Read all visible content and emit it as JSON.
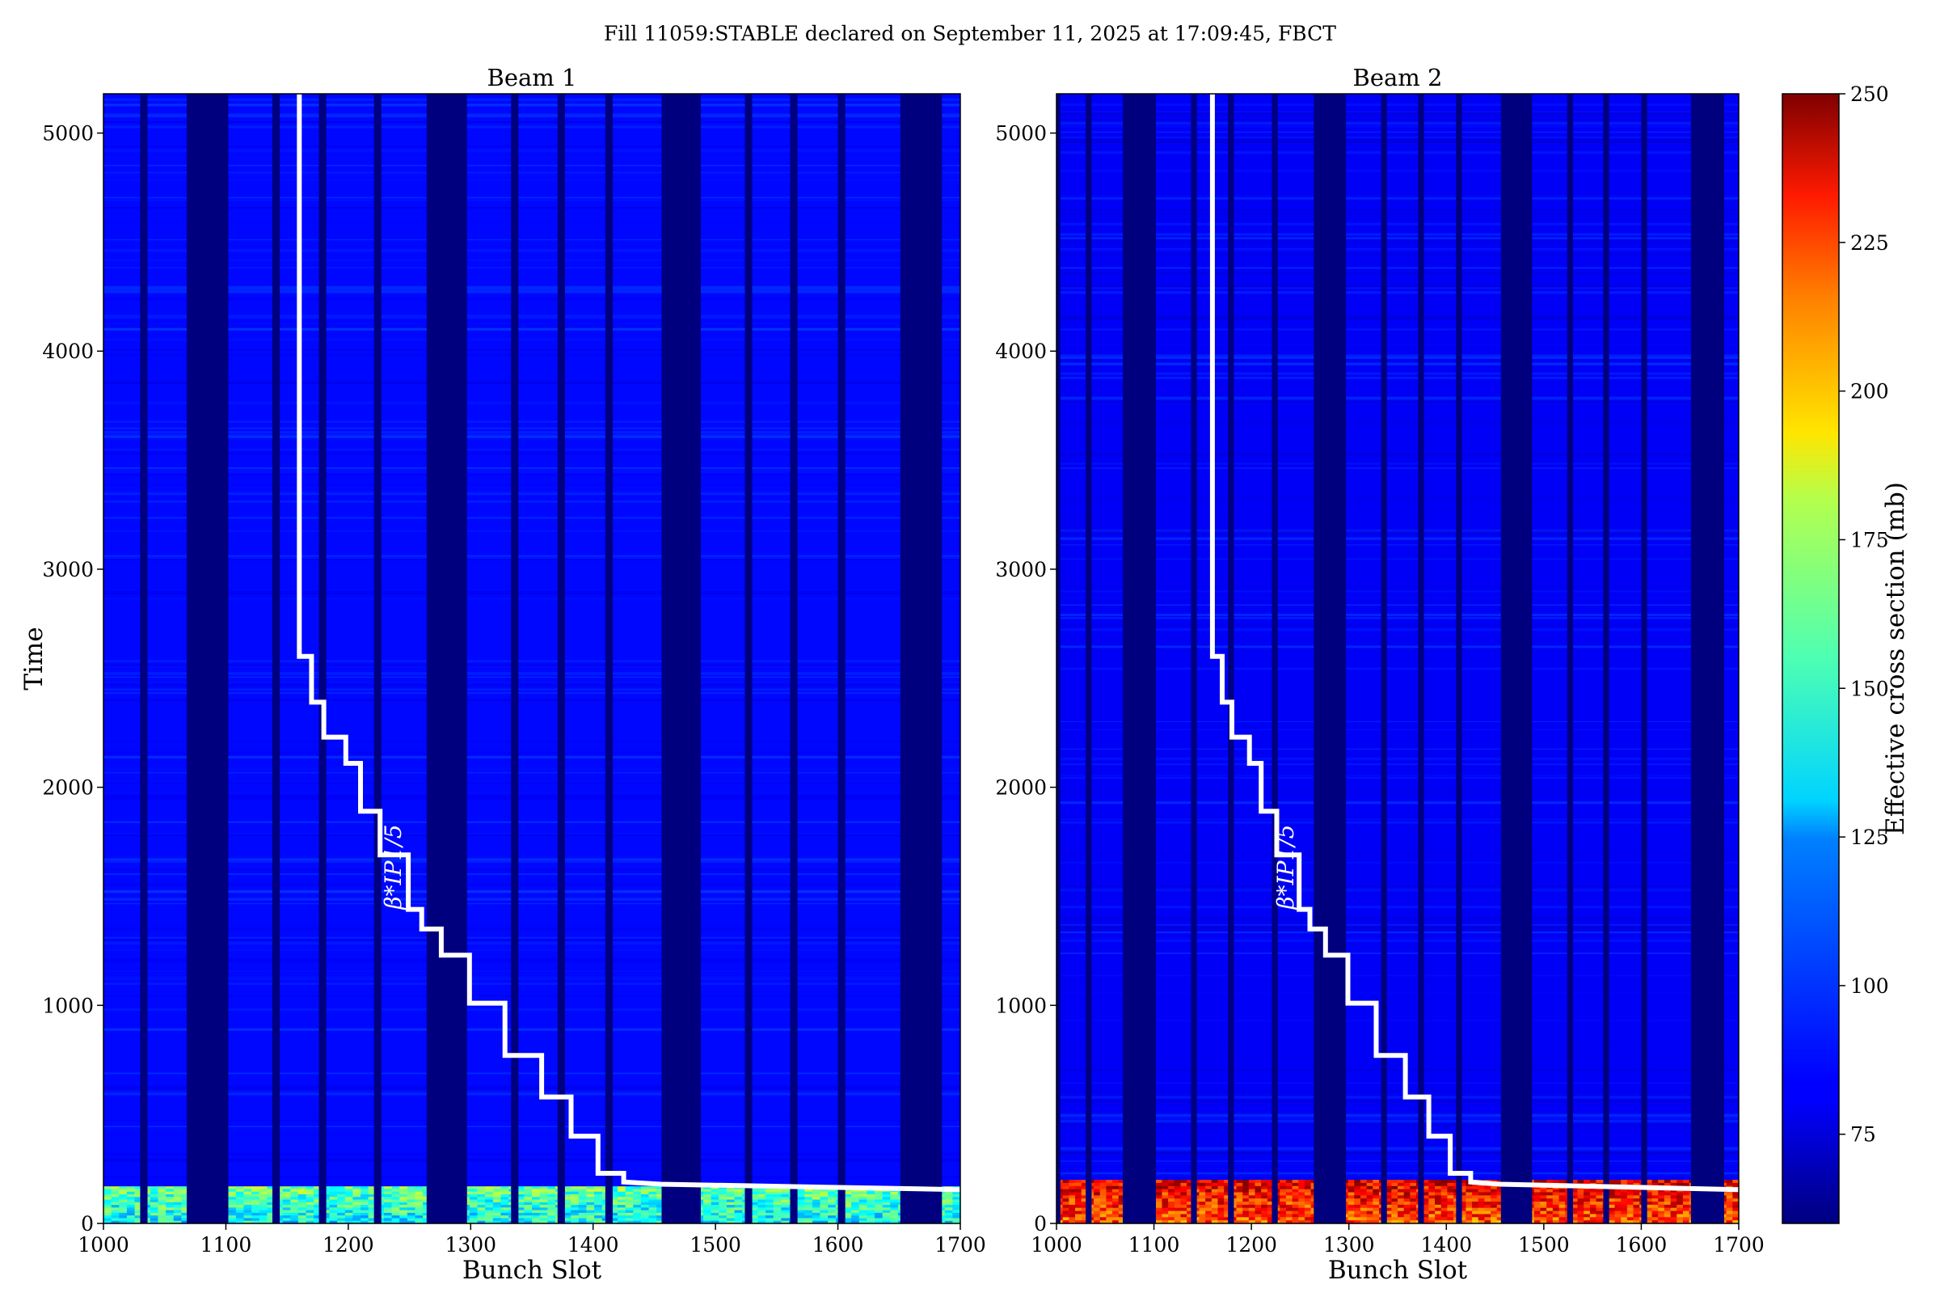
{
  "suptitle": "Fill 11059:STABLE declared on September 11, 2025 at 17:09:45, FBCT",
  "colorbar": {
    "label": "Effective cross section (mb)",
    "range": [
      60,
      250
    ],
    "ticks": [
      75,
      100,
      125,
      150,
      175,
      200,
      225,
      250
    ],
    "colormap": "jet"
  },
  "annotation_text": "β*IP1/5",
  "chart_data": [
    {
      "type": "heatmap",
      "title": "Beam 1",
      "xlabel": "Bunch Slot",
      "ylabel": "Time",
      "xlim": [
        1000,
        1700
      ],
      "ylim": [
        0,
        5180
      ],
      "xticks": [
        1000,
        1100,
        1200,
        1300,
        1400,
        1500,
        1600,
        1700
      ],
      "yticks": [
        0,
        1000,
        2000,
        3000,
        4000,
        5000
      ],
      "empty_slot_ranges": [
        [
          1030,
          1036
        ],
        [
          1068,
          1102
        ],
        [
          1138,
          1144
        ],
        [
          1176,
          1182
        ],
        [
          1221,
          1227
        ],
        [
          1264,
          1297
        ],
        [
          1333,
          1339
        ],
        [
          1371,
          1377
        ],
        [
          1410,
          1416
        ],
        [
          1456,
          1488
        ],
        [
          1524,
          1530
        ],
        [
          1561,
          1567
        ],
        [
          1600,
          1606
        ],
        [
          1651,
          1685
        ]
      ],
      "typical_value": 85,
      "high_value_band": {
        "time_range": [
          0,
          170
        ],
        "value": 150
      },
      "beta_star_step_line": {
        "x": [
          1160,
          1160,
          1170,
          1170,
          1180,
          1180,
          1198,
          1198,
          1210,
          1210,
          1226,
          1226,
          1249,
          1249,
          1260,
          1260,
          1276,
          1276,
          1299,
          1299,
          1328,
          1328,
          1358,
          1358,
          1382,
          1382,
          1404,
          1404,
          1425,
          1425,
          1455,
          1700
        ],
        "y": [
          5180,
          2600,
          2600,
          2390,
          2390,
          2230,
          2230,
          2110,
          2110,
          1890,
          1890,
          1690,
          1690,
          1440,
          1440,
          1350,
          1350,
          1230,
          1230,
          1010,
          1010,
          770,
          770,
          580,
          580,
          400,
          400,
          230,
          230,
          190,
          180,
          155
        ]
      }
    },
    {
      "type": "heatmap",
      "title": "Beam 2",
      "xlabel": "Bunch Slot",
      "ylabel": "",
      "xlim": [
        1000,
        1700
      ],
      "ylim": [
        0,
        5180
      ],
      "xticks": [
        1000,
        1100,
        1200,
        1300,
        1400,
        1500,
        1600,
        1700
      ],
      "yticks": [
        0,
        1000,
        2000,
        3000,
        4000,
        5000
      ],
      "empty_slot_ranges": [
        [
          1000,
          1004
        ],
        [
          1030,
          1036
        ],
        [
          1068,
          1102
        ],
        [
          1138,
          1144
        ],
        [
          1176,
          1182
        ],
        [
          1221,
          1227
        ],
        [
          1264,
          1297
        ],
        [
          1333,
          1339
        ],
        [
          1371,
          1377
        ],
        [
          1410,
          1416
        ],
        [
          1456,
          1488
        ],
        [
          1524,
          1530
        ],
        [
          1561,
          1567
        ],
        [
          1600,
          1606
        ],
        [
          1651,
          1685
        ]
      ],
      "typical_value": 82,
      "high_value_band": {
        "time_range": [
          0,
          200
        ],
        "value": 230
      },
      "beta_star_step_line": {
        "x": [
          1160,
          1160,
          1170,
          1170,
          1180,
          1180,
          1198,
          1198,
          1210,
          1210,
          1226,
          1226,
          1249,
          1249,
          1260,
          1260,
          1276,
          1276,
          1299,
          1299,
          1328,
          1328,
          1358,
          1358,
          1382,
          1382,
          1404,
          1404,
          1425,
          1425,
          1455,
          1700
        ],
        "y": [
          5180,
          2600,
          2600,
          2390,
          2390,
          2230,
          2230,
          2110,
          2110,
          1890,
          1890,
          1690,
          1690,
          1440,
          1440,
          1350,
          1350,
          1230,
          1230,
          1010,
          1010,
          770,
          770,
          580,
          580,
          400,
          400,
          230,
          230,
          190,
          180,
          155
        ]
      }
    }
  ]
}
